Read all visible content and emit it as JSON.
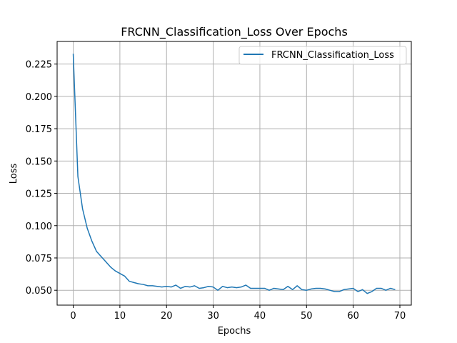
{
  "chart_data": {
    "type": "line",
    "title": "FRCNN_Classification_Loss Over Epochs",
    "xlabel": "Epochs",
    "ylabel": "Loss",
    "xlim": [
      -3.45,
      72.45
    ],
    "ylim": [
      0.0385,
      0.2425
    ],
    "xticks": [
      0,
      10,
      20,
      30,
      40,
      50,
      60,
      70
    ],
    "yticks": [
      0.05,
      0.075,
      0.1,
      0.125,
      0.15,
      0.175,
      0.2,
      0.225
    ],
    "ytick_labels": [
      "0.050",
      "0.075",
      "0.100",
      "0.125",
      "0.150",
      "0.175",
      "0.200",
      "0.225"
    ],
    "grid": true,
    "legend_position": "top-right",
    "series": [
      {
        "name": "FRCNN_Classification_Loss",
        "color": "#1f77b4",
        "x": [
          0,
          1,
          2,
          3,
          4,
          5,
          6,
          7,
          8,
          9,
          10,
          11,
          12,
          13,
          14,
          15,
          16,
          17,
          18,
          19,
          20,
          21,
          22,
          23,
          24,
          25,
          26,
          27,
          28,
          29,
          30,
          31,
          32,
          33,
          34,
          35,
          36,
          37,
          38,
          39,
          40,
          41,
          42,
          43,
          44,
          45,
          46,
          47,
          48,
          49,
          50,
          51,
          52,
          53,
          54,
          55,
          56,
          57,
          58,
          59,
          60,
          61,
          62,
          63,
          64,
          65,
          66,
          67,
          68,
          69
        ],
        "values": [
          0.233,
          0.138,
          0.113,
          0.098,
          0.088,
          0.08,
          0.076,
          0.072,
          0.068,
          0.065,
          0.063,
          0.061,
          0.057,
          0.056,
          0.055,
          0.0545,
          0.0535,
          0.0535,
          0.053,
          0.0525,
          0.053,
          0.0525,
          0.054,
          0.0515,
          0.053,
          0.0525,
          0.0535,
          0.0515,
          0.052,
          0.053,
          0.0525,
          0.05,
          0.053,
          0.052,
          0.0525,
          0.052,
          0.0525,
          0.054,
          0.0515,
          0.0515,
          0.0515,
          0.0515,
          0.05,
          0.0515,
          0.051,
          0.0505,
          0.053,
          0.0505,
          0.0535,
          0.0505,
          0.05,
          0.051,
          0.0515,
          0.0515,
          0.051,
          0.05,
          0.049,
          0.049,
          0.0505,
          0.051,
          0.0515,
          0.049,
          0.0505,
          0.0475,
          0.049,
          0.0515,
          0.0515,
          0.05,
          0.0515,
          0.0505
        ]
      }
    ]
  }
}
